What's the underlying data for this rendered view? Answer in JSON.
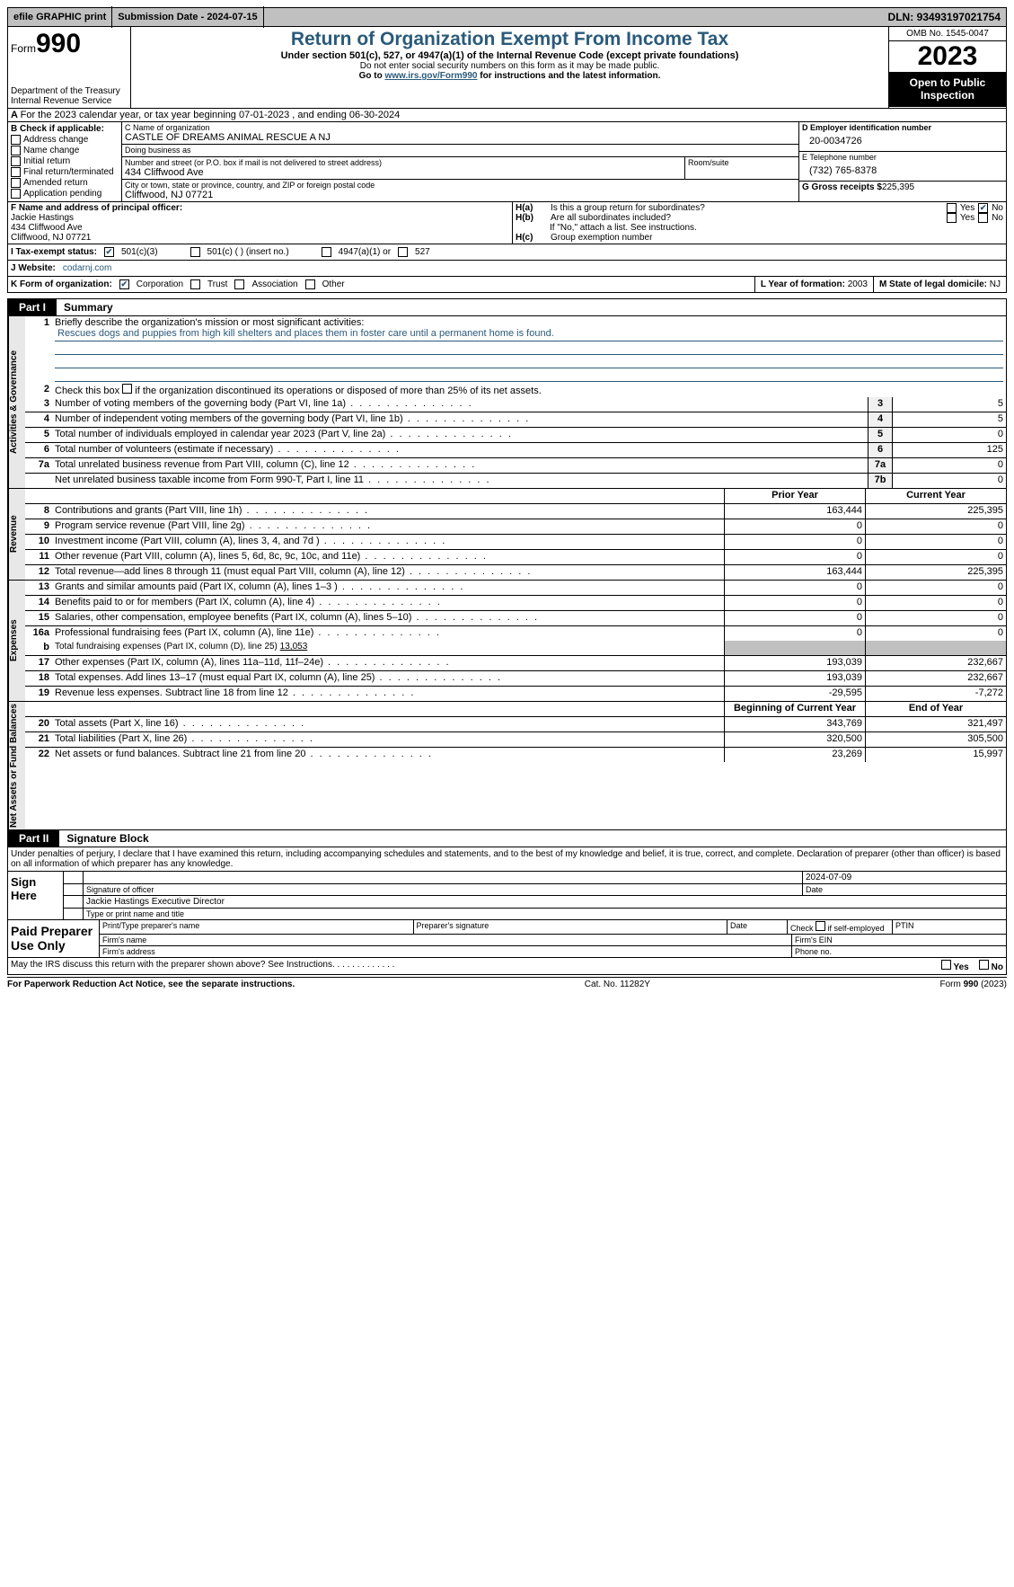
{
  "topbar": {
    "efile": "efile GRAPHIC print",
    "submission": "Submission Date - 2024-07-15",
    "dln_label": "DLN:",
    "dln": "93493197021754"
  },
  "header": {
    "form_prefix": "Form",
    "form_num": "990",
    "dept": "Department of the Treasury",
    "irs": "Internal Revenue Service",
    "title": "Return of Organization Exempt From Income Tax",
    "sub": "Under section 501(c), 527, or 4947(a)(1) of the Internal Revenue Code (except private foundations)",
    "note1": "Do not enter social security numbers on this form as it may be made public.",
    "note2_pre": "Go to ",
    "note2_link": "www.irs.gov/Form990",
    "note2_post": " for instructions and the latest information.",
    "omb": "OMB No. 1545-0047",
    "year": "2023",
    "opi": "Open to Public Inspection"
  },
  "rowA": {
    "text_a": "A",
    "text": "For the 2023 calendar year, or tax year beginning 07-01-2023    , and ending 06-30-2024"
  },
  "boxB": {
    "label": "B Check if applicable:",
    "items": [
      "Address change",
      "Name change",
      "Initial return",
      "Final return/terminated",
      "Amended return",
      "Application pending"
    ]
  },
  "boxC": {
    "name_lbl": "C Name of organization",
    "name": "CASTLE OF DREAMS ANIMAL RESCUE A NJ",
    "dba_lbl": "Doing business as",
    "street_lbl": "Number and street (or P.O. box if mail is not delivered to street address)",
    "street": "434 Cliffwood Ave",
    "room_lbl": "Room/suite",
    "city_lbl": "City or town, state or province, country, and ZIP or foreign postal code",
    "city": "Cliffwood, NJ  07721"
  },
  "boxD": {
    "ein_lbl": "D Employer identification number",
    "ein": "20-0034726",
    "tel_lbl": "E Telephone number",
    "tel": "(732) 765-8378",
    "gross_lbl": "G Gross receipts $",
    "gross": "225,395"
  },
  "boxF": {
    "lbl": "F  Name and address of principal officer:",
    "name": "Jackie Hastings",
    "street": "434 Cliffwood Ave",
    "city": "Cliffwood, NJ  07721"
  },
  "boxH": {
    "a_lbl": "H(a)",
    "a_txt": "Is this a group return for subordinates?",
    "b_lbl": "H(b)",
    "b_txt": "Are all subordinates included?",
    "b_note": "If \"No,\" attach a list. See instructions.",
    "c_lbl": "H(c)",
    "c_txt": "Group exemption number",
    "yes": "Yes",
    "no": "No"
  },
  "taxI": {
    "lbl": "I   Tax-exempt status:",
    "o1": "501(c)(3)",
    "o2": "501(c) (  ) (insert no.)",
    "o3": "4947(a)(1) or",
    "o4": "527"
  },
  "webJ": {
    "lbl": "J   Website:",
    "val": "codarnj.com"
  },
  "rowK": {
    "lbl": "K Form of organization:",
    "o1": "Corporation",
    "o2": "Trust",
    "o3": "Association",
    "o4": "Other",
    "l_lbl": "L Year of formation:",
    "l_val": "2003",
    "m_lbl": "M State of legal domicile:",
    "m_val": "NJ"
  },
  "part1": {
    "tag": "Part I",
    "title": "Summary"
  },
  "gov": {
    "label": "Activities & Governance",
    "l1_lbl": "Briefly describe the organization's mission or most significant activities:",
    "l1_val": "Rescues dogs and puppies from high kill shelters and places them in foster care until a permanent home is found.",
    "l2": "Check this box        if the organization discontinued its operations or disposed of more than 25% of its net assets.",
    "l3": "Number of voting members of the governing body (Part VI, line 1a)",
    "l3v": "5",
    "l4": "Number of independent voting members of the governing body (Part VI, line 1b)",
    "l4v": "5",
    "l5": "Total number of individuals employed in calendar year 2023 (Part V, line 2a)",
    "l5v": "0",
    "l6": "Total number of volunteers (estimate if necessary)",
    "l6v": "125",
    "l7a": "Total unrelated business revenue from Part VIII, column (C), line 12",
    "l7av": "0",
    "l7b": "Net unrelated business taxable income from Form 990-T, Part I, line 11",
    "l7bv": "0"
  },
  "hdr_cols": {
    "prior": "Prior Year",
    "current": "Current Year",
    "boy": "Beginning of Current Year",
    "eoy": "End of Year"
  },
  "rev": {
    "label": "Revenue",
    "rows": [
      {
        "n": "8",
        "d": "Contributions and grants (Part VIII, line 1h)",
        "p": "163,444",
        "c": "225,395"
      },
      {
        "n": "9",
        "d": "Program service revenue (Part VIII, line 2g)",
        "p": "0",
        "c": "0"
      },
      {
        "n": "10",
        "d": "Investment income (Part VIII, column (A), lines 3, 4, and 7d )",
        "p": "0",
        "c": "0"
      },
      {
        "n": "11",
        "d": "Other revenue (Part VIII, column (A), lines 5, 6d, 8c, 9c, 10c, and 11e)",
        "p": "0",
        "c": "0"
      },
      {
        "n": "12",
        "d": "Total revenue—add lines 8 through 11 (must equal Part VIII, column (A), line 12)",
        "p": "163,444",
        "c": "225,395"
      }
    ]
  },
  "exp": {
    "label": "Expenses",
    "rows": [
      {
        "n": "13",
        "d": "Grants and similar amounts paid (Part IX, column (A), lines 1–3 )",
        "p": "0",
        "c": "0"
      },
      {
        "n": "14",
        "d": "Benefits paid to or for members (Part IX, column (A), line 4)",
        "p": "0",
        "c": "0"
      },
      {
        "n": "15",
        "d": "Salaries, other compensation, employee benefits (Part IX, column (A), lines 5–10)",
        "p": "0",
        "c": "0"
      },
      {
        "n": "16a",
        "d": "Professional fundraising fees (Part IX, column (A), line 11e)",
        "p": "0",
        "c": "0"
      }
    ],
    "l16b_pre": "Total fundraising expenses (Part IX, column (D), line 25)",
    "l16b_val": "13,053",
    "rows2": [
      {
        "n": "17",
        "d": "Other expenses (Part IX, column (A), lines 11a–11d, 11f–24e)",
        "p": "193,039",
        "c": "232,667"
      },
      {
        "n": "18",
        "d": "Total expenses. Add lines 13–17 (must equal Part IX, column (A), line 25)",
        "p": "193,039",
        "c": "232,667"
      },
      {
        "n": "19",
        "d": "Revenue less expenses. Subtract line 18 from line 12",
        "p": "-29,595",
        "c": "-7,272"
      }
    ]
  },
  "net": {
    "label": "Net Assets or Fund Balances",
    "rows": [
      {
        "n": "20",
        "d": "Total assets (Part X, line 16)",
        "p": "343,769",
        "c": "321,497"
      },
      {
        "n": "21",
        "d": "Total liabilities (Part X, line 26)",
        "p": "320,500",
        "c": "305,500"
      },
      {
        "n": "22",
        "d": "Net assets or fund balances. Subtract line 21 from line 20",
        "p": "23,269",
        "c": "15,997"
      }
    ]
  },
  "part2": {
    "tag": "Part II",
    "title": "Signature Block"
  },
  "sig": {
    "decl": "Under penalties of perjury, I declare that I have examined this return, including accompanying schedules and statements, and to the best of my knowledge and belief, it is true, correct, and complete. Declaration of preparer (other than officer) is based on all information of which preparer has any knowledge.",
    "here": "Sign Here",
    "date": "2024-07-09",
    "sig_lbl": "Signature of officer",
    "date_lbl": "Date",
    "name": "Jackie Hastings  Executive Director",
    "name_lbl": "Type or print name and title"
  },
  "paid": {
    "lbl": "Paid Preparer Use Only",
    "c1": "Print/Type preparer's name",
    "c2": "Preparer's signature",
    "c3": "Date",
    "c4_pre": "Check",
    "c4_post": "if self-employed",
    "c5": "PTIN",
    "f1": "Firm's name",
    "f2": "Firm's EIN",
    "a1": "Firm's address",
    "a2": "Phone no."
  },
  "discuss": {
    "txt": "May the IRS discuss this return with the preparer shown above? See Instructions.",
    "yes": "Yes",
    "no": "No"
  },
  "footer": {
    "left": "For Paperwork Reduction Act Notice, see the separate instructions.",
    "mid": "Cat. No. 11282Y",
    "right_pre": "Form ",
    "right_num": "990",
    "right_post": " (2023)"
  }
}
